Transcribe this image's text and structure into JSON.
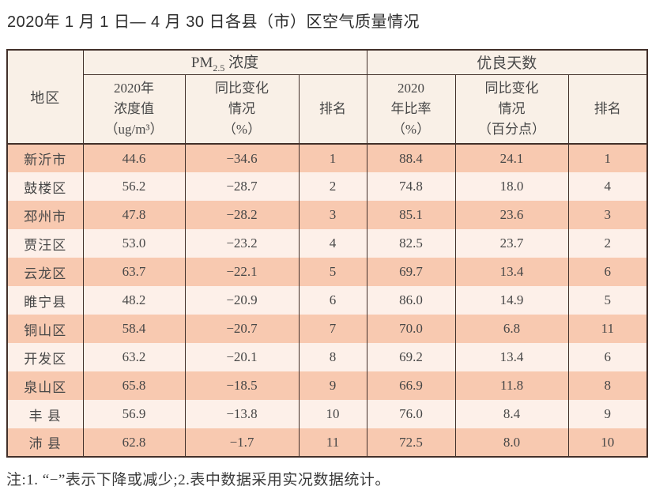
{
  "title": "2020年 1 月 1 日— 4 月 30 日各县（市）区空气质量情况",
  "table": {
    "col_region": "地区",
    "group_pm25": {
      "prefix": "PM",
      "sub": "2.5",
      "suffix": " 浓度"
    },
    "group_good_days": "优良天数",
    "sub_headers": {
      "pm_value": "2020年\n浓度值\n（ug/m³）",
      "pm_change": "同比变化\n情况\n（%）",
      "pm_rank": "排名",
      "gd_ratio": "2020\n年比率\n（%）",
      "gd_change": "同比变化\n情况\n（百分点）",
      "gd_rank": "排名"
    },
    "rows": [
      {
        "region": "新沂市",
        "pm_value": "44.6",
        "pm_change": "−34.6",
        "pm_rank": "1",
        "gd_ratio": "88.4",
        "gd_change": "24.1",
        "gd_rank": "1"
      },
      {
        "region": "鼓楼区",
        "pm_value": "56.2",
        "pm_change": "−28.7",
        "pm_rank": "2",
        "gd_ratio": "74.8",
        "gd_change": "18.0",
        "gd_rank": "4"
      },
      {
        "region": "邳州市",
        "pm_value": "47.8",
        "pm_change": "−28.2",
        "pm_rank": "3",
        "gd_ratio": "85.1",
        "gd_change": "23.6",
        "gd_rank": "3"
      },
      {
        "region": "贾汪区",
        "pm_value": "53.0",
        "pm_change": "−23.2",
        "pm_rank": "4",
        "gd_ratio": "82.5",
        "gd_change": "23.7",
        "gd_rank": "2"
      },
      {
        "region": "云龙区",
        "pm_value": "63.7",
        "pm_change": "−22.1",
        "pm_rank": "5",
        "gd_ratio": "69.7",
        "gd_change": "13.4",
        "gd_rank": "6"
      },
      {
        "region": "睢宁县",
        "pm_value": "48.2",
        "pm_change": "−20.9",
        "pm_rank": "6",
        "gd_ratio": "86.0",
        "gd_change": "14.9",
        "gd_rank": "5"
      },
      {
        "region": "铜山区",
        "pm_value": "58.4",
        "pm_change": "−20.7",
        "pm_rank": "7",
        "gd_ratio": "70.0",
        "gd_change": "6.8",
        "gd_rank": "11"
      },
      {
        "region": "开发区",
        "pm_value": "63.2",
        "pm_change": "−20.1",
        "pm_rank": "8",
        "gd_ratio": "69.2",
        "gd_change": "13.4",
        "gd_rank": "6"
      },
      {
        "region": "泉山区",
        "pm_value": "65.8",
        "pm_change": "−18.5",
        "pm_rank": "9",
        "gd_ratio": "66.9",
        "gd_change": "11.8",
        "gd_rank": "8"
      },
      {
        "region": "丰 县",
        "pm_value": "56.9",
        "pm_change": "−13.8",
        "pm_rank": "10",
        "gd_ratio": "76.0",
        "gd_change": "8.4",
        "gd_rank": "9"
      },
      {
        "region": "沛 县",
        "pm_value": "62.8",
        "pm_change": "−1.7",
        "pm_rank": "11",
        "gd_ratio": "72.5",
        "gd_change": "8.0",
        "gd_rank": "10"
      }
    ]
  },
  "note": "注:1. “−”表示下降或减少;2.表中数据采用实况数据统计。",
  "colors": {
    "row_odd": "#f8c9b0",
    "row_even": "#fdf0e9",
    "header_bg": "#f9f0e7",
    "border": "#42302a",
    "text": "#474747"
  }
}
